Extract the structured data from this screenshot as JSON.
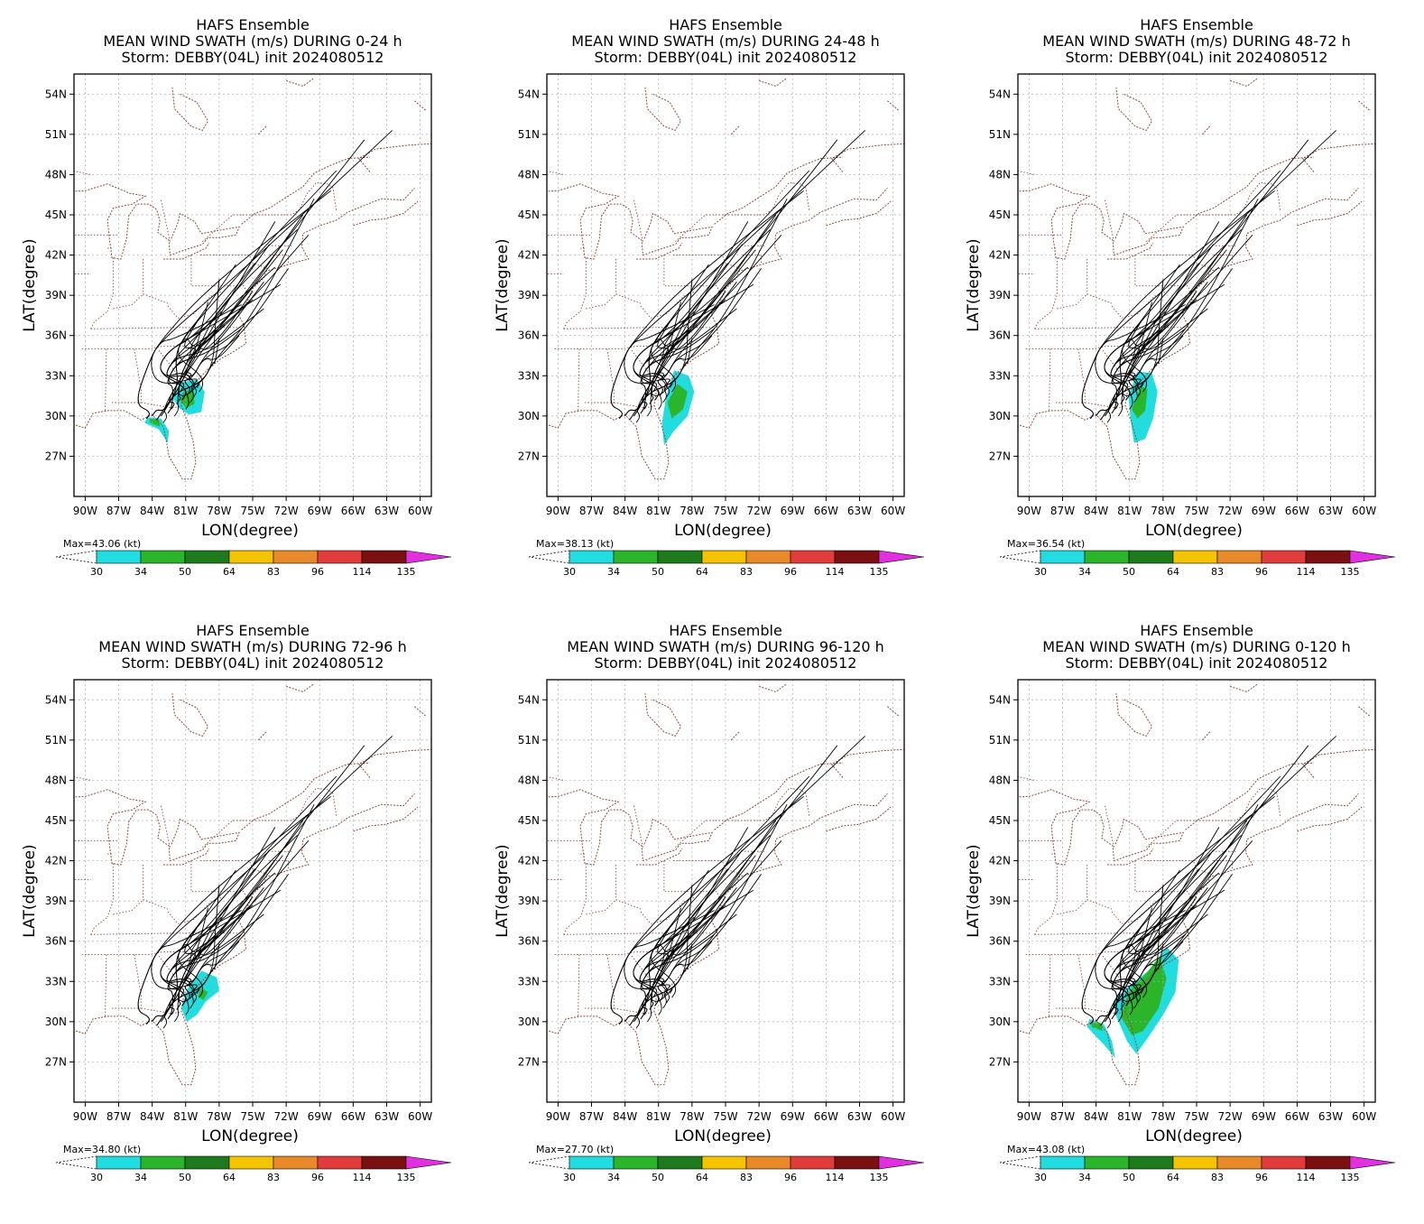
{
  "panels": [
    {
      "title1": "HAFS Ensemble",
      "title2": "MEAN WIND SWATH (m/s) DURING  0-24 h",
      "title3": "Storm: DEBBY(04L) init 2024080512",
      "max_label": "Max=43.06 (kt)"
    },
    {
      "title1": "HAFS Ensemble",
      "title2": "MEAN WIND SWATH (m/s) DURING 24-48 h",
      "title3": "Storm: DEBBY(04L) init 2024080512",
      "max_label": "Max=38.13 (kt)"
    },
    {
      "title1": "HAFS Ensemble",
      "title2": "MEAN WIND SWATH (m/s) DURING 48-72 h",
      "title3": "Storm: DEBBY(04L) init 2024080512",
      "max_label": "Max=36.54 (kt)"
    },
    {
      "title1": "HAFS Ensemble",
      "title2": "MEAN WIND SWATH (m/s) DURING 72-96 h",
      "title3": "Storm: DEBBY(04L) init 2024080512",
      "max_label": "Max=34.80 (kt)"
    },
    {
      "title1": "HAFS Ensemble",
      "title2": "MEAN WIND SWATH (m/s) DURING 96-120 h",
      "title3": "Storm: DEBBY(04L) init 2024080512",
      "max_label": "Max=27.70 (kt)"
    },
    {
      "title1": "HAFS Ensemble",
      "title2": "MEAN WIND SWATH (m/s) DURING 0-120 h",
      "title3": "Storm: DEBBY(04L) init 2024080512",
      "max_label": "Max=43.08 (kt)"
    }
  ],
  "axes": {
    "xlabel": "LON(degree)",
    "ylabel": "LAT(degree)",
    "lon_ticks": [
      "90W",
      "87W",
      "84W",
      "81W",
      "78W",
      "75W",
      "72W",
      "69W",
      "66W",
      "63W",
      "60W"
    ],
    "lat_ticks": [
      "54N",
      "51N",
      "48N",
      "45N",
      "42N",
      "39N",
      "36N",
      "33N",
      "30N",
      "27N"
    ]
  },
  "colorbar": {
    "labels": [
      "30",
      "34",
      "50",
      "64",
      "83",
      "96",
      "114",
      "135"
    ],
    "colors": [
      "#22dde0",
      "#2ab52a",
      "#1d7a1d",
      "#f5c400",
      "#e98a2a",
      "#e03c3c",
      "#7a1010"
    ],
    "arrow_color": "#e030e0"
  },
  "colors": {
    "coast": "#8b4a3a",
    "grid": "#aaaaaa",
    "track": "#000000"
  },
  "chart_data": {
    "type": "map",
    "lon_range": [
      -91,
      -59
    ],
    "lat_range": [
      24,
      55.5
    ],
    "grid": true,
    "contour_levels_kt": [
      30,
      34,
      50,
      64,
      83,
      96,
      114,
      135
    ],
    "max_wind_kt": [
      43.06,
      38.13,
      36.54,
      34.8,
      27.7,
      43.08
    ],
    "periods_h": [
      "0-24",
      "24-48",
      "48-72",
      "72-96",
      "96-120",
      "0-120"
    ]
  }
}
